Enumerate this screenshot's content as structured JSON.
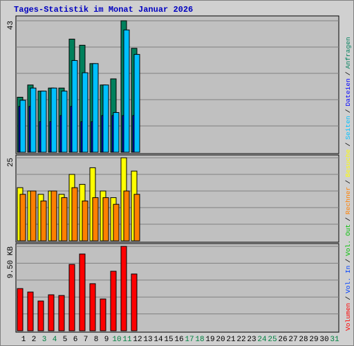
{
  "chart_data": {
    "type": "bar",
    "title": "Tages-Statistik im Monat Januar 2026",
    "categories": [
      "1",
      "2",
      "3",
      "4",
      "5",
      "6",
      "7",
      "8",
      "9",
      "10",
      "11",
      "12",
      "13",
      "14",
      "15",
      "16",
      "17",
      "18",
      "19",
      "20",
      "21",
      "22",
      "23",
      "24",
      "25",
      "26",
      "27",
      "28",
      "29",
      "30",
      "31"
    ],
    "xtick_colors": [
      "#000000",
      "#000000",
      "#008040",
      "#008040",
      "#000000",
      "#000000",
      "#000000",
      "#000000",
      "#000000",
      "#008040",
      "#008040",
      "#000000",
      "#000000",
      "#000000",
      "#000000",
      "#000000",
      "#008040",
      "#008040",
      "#000000",
      "#000000",
      "#000000",
      "#000000",
      "#000000",
      "#008040",
      "#008040",
      "#000000",
      "#000000",
      "#000000",
      "#000000",
      "#000000",
      "#008040"
    ],
    "legend_separator": "/",
    "panels": [
      {
        "ylim": [
          0,
          43
        ],
        "yticks": [
          43
        ],
        "ygrid": [
          8.6,
          17.2,
          25.8,
          34.4
        ],
        "series": [
          {
            "name": "Anfragen",
            "color": "#00805c",
            "values": [
              18,
              22,
              20,
              21,
              21,
              37,
              35,
              29,
              22,
              24,
              43,
              34,
              null,
              null,
              null,
              null,
              null,
              null,
              null,
              null,
              null,
              null,
              null,
              null,
              null,
              null,
              null,
              null,
              null,
              null,
              null
            ]
          },
          {
            "name": "Dateien",
            "color": "#0000ff",
            "values": [
              15,
              15,
              10,
              10,
              12,
              15,
              10,
              10,
              12,
              12,
              12,
              12,
              null,
              null,
              null,
              null,
              null,
              null,
              null,
              null,
              null,
              null,
              null,
              null,
              null,
              null,
              null,
              null,
              null,
              null,
              null
            ]
          },
          {
            "name": "Seiten",
            "color": "#00c0ff",
            "values": [
              17,
              21,
              20,
              21,
              20,
              30,
              26,
              29,
              22,
              13,
              40,
              32,
              null,
              null,
              null,
              null,
              null,
              null,
              null,
              null,
              null,
              null,
              null,
              null,
              null,
              null,
              null,
              null,
              null,
              null,
              null
            ]
          }
        ]
      },
      {
        "ylim": [
          0,
          25
        ],
        "yticks": [
          25
        ],
        "ygrid": [
          5,
          10,
          15,
          20
        ],
        "series": [
          {
            "name": "Besuche",
            "color": "#ffff00",
            "values": [
              16,
              15,
              14,
              15,
              14,
              20,
              17,
              22,
              15,
              13,
              25,
              21,
              null,
              null,
              null,
              null,
              null,
              null,
              null,
              null,
              null,
              null,
              null,
              null,
              null,
              null,
              null,
              null,
              null,
              null,
              null
            ]
          },
          {
            "name": "Rechner",
            "color": "#ff8000",
            "values": [
              14,
              15,
              12,
              15,
              13,
              16,
              12,
              13,
              13,
              11,
              15,
              14,
              null,
              null,
              null,
              null,
              null,
              null,
              null,
              null,
              null,
              null,
              null,
              null,
              null,
              null,
              null,
              null,
              null,
              null,
              null
            ]
          }
        ]
      },
      {
        "ylim": [
          0,
          9.5
        ],
        "yticks": [
          {
            "value": 9.5,
            "label": "9.50 KB"
          }
        ],
        "ygrid": [
          1.9,
          3.8,
          5.7,
          7.6
        ],
        "series": [
          {
            "name": "Vol. Out",
            "color": "#00c000",
            "values": [
              null,
              null,
              null,
              null,
              null,
              null,
              null,
              null,
              null,
              null,
              null,
              null,
              null,
              null,
              null,
              null,
              null,
              null,
              null,
              null,
              null,
              null,
              null,
              null,
              null,
              null,
              null,
              null,
              null,
              null,
              null
            ]
          },
          {
            "name": "Vol. In",
            "color": "#0040ff",
            "values": [
              null,
              null,
              null,
              null,
              null,
              null,
              null,
              null,
              null,
              null,
              null,
              null,
              null,
              null,
              null,
              null,
              null,
              null,
              null,
              null,
              null,
              null,
              null,
              null,
              null,
              null,
              null,
              null,
              null,
              null,
              null
            ]
          },
          {
            "name": "Volumen",
            "color": "#ff0000",
            "values": [
              4.75,
              4.36,
              3.35,
              4.05,
              3.97,
              7.47,
              8.64,
              5.3,
              3.58,
              6.7,
              9.5,
              6.39,
              null,
              null,
              null,
              null,
              null,
              null,
              null,
              null,
              null,
              null,
              null,
              null,
              null,
              null,
              null,
              null,
              null,
              null,
              null
            ]
          }
        ]
      }
    ]
  }
}
